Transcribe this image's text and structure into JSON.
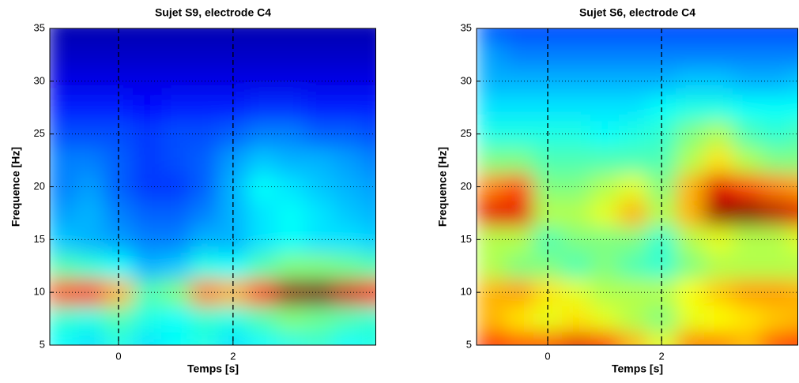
{
  "chart_data": [
    {
      "type": "heatmap",
      "title": "Sujet S9, electrode C4",
      "xlabel": "Temps [s]",
      "ylabel": "Frequence [Hz]",
      "xlim": [
        -1.2,
        4.5
      ],
      "ylim": [
        5,
        35
      ],
      "xticks": [
        0,
        2
      ],
      "yticks": [
        5,
        10,
        15,
        20,
        25,
        30,
        35
      ],
      "grid": true,
      "x_grid_style": "dashed",
      "y_grid_style": "dotted",
      "colormap": "jet",
      "x": [
        -1,
        -0.5,
        0,
        0.5,
        1,
        1.5,
        2,
        2.5,
        3,
        3.5,
        4,
        4.5
      ],
      "y": [
        5,
        7.5,
        10,
        12.5,
        15,
        17.5,
        20,
        22.5,
        25,
        27.5,
        30,
        32.5,
        35
      ],
      "z": [
        [
          0.38,
          0.35,
          0.4,
          0.35,
          0.38,
          0.4,
          0.35,
          0.38,
          0.4,
          0.42,
          0.38,
          0.4
        ],
        [
          0.42,
          0.4,
          0.45,
          0.4,
          0.38,
          0.42,
          0.4,
          0.45,
          0.5,
          0.48,
          0.45,
          0.42
        ],
        [
          0.8,
          0.82,
          0.7,
          0.45,
          0.5,
          0.75,
          0.7,
          0.82,
          0.98,
          1.0,
          0.92,
          0.85
        ],
        [
          0.45,
          0.42,
          0.38,
          0.3,
          0.32,
          0.4,
          0.38,
          0.45,
          0.5,
          0.5,
          0.48,
          0.45
        ],
        [
          0.32,
          0.3,
          0.28,
          0.25,
          0.25,
          0.3,
          0.3,
          0.35,
          0.38,
          0.35,
          0.35,
          0.33
        ],
        [
          0.28,
          0.3,
          0.25,
          0.22,
          0.22,
          0.25,
          0.3,
          0.35,
          0.38,
          0.35,
          0.32,
          0.3
        ],
        [
          0.25,
          0.28,
          0.22,
          0.18,
          0.18,
          0.22,
          0.3,
          0.38,
          0.35,
          0.32,
          0.3,
          0.28
        ],
        [
          0.25,
          0.25,
          0.22,
          0.18,
          0.2,
          0.22,
          0.28,
          0.32,
          0.3,
          0.3,
          0.28,
          0.25
        ],
        [
          0.2,
          0.2,
          0.2,
          0.18,
          0.2,
          0.2,
          0.22,
          0.25,
          0.25,
          0.22,
          0.22,
          0.2
        ],
        [
          0.15,
          0.15,
          0.15,
          0.13,
          0.15,
          0.15,
          0.15,
          0.17,
          0.17,
          0.15,
          0.15,
          0.15
        ],
        [
          0.1,
          0.1,
          0.1,
          0.1,
          0.1,
          0.1,
          0.1,
          0.1,
          0.1,
          0.1,
          0.1,
          0.1
        ],
        [
          0.07,
          0.07,
          0.07,
          0.07,
          0.07,
          0.07,
          0.07,
          0.07,
          0.07,
          0.07,
          0.07,
          0.07
        ],
        [
          0.05,
          0.05,
          0.05,
          0.05,
          0.05,
          0.05,
          0.05,
          0.05,
          0.05,
          0.05,
          0.05,
          0.05
        ]
      ]
    },
    {
      "type": "heatmap",
      "title": "Sujet S6, electrode C4",
      "xlabel": "Temps [s]",
      "ylabel": "Frequence [Hz]",
      "xlim": [
        -1.25,
        4.4
      ],
      "ylim": [
        5,
        35
      ],
      "xticks": [
        0,
        2
      ],
      "yticks": [
        5,
        10,
        15,
        20,
        25,
        30,
        35
      ],
      "grid": true,
      "x_grid_style": "dashed",
      "y_grid_style": "dotted",
      "colormap": "jet",
      "x": [
        -1,
        -0.5,
        0,
        0.5,
        1,
        1.5,
        2,
        2.5,
        3,
        3.5,
        4,
        4.5
      ],
      "y": [
        5,
        7.5,
        10,
        12.5,
        15,
        17.5,
        20,
        22.5,
        25,
        27.5,
        30,
        32.5,
        35
      ],
      "z": [
        [
          0.85,
          0.8,
          0.8,
          0.9,
          0.85,
          0.7,
          0.6,
          0.75,
          0.75,
          0.7,
          0.8,
          0.85
        ],
        [
          0.7,
          0.65,
          0.6,
          0.65,
          0.6,
          0.55,
          0.5,
          0.6,
          0.62,
          0.65,
          0.68,
          0.7
        ],
        [
          0.7,
          0.72,
          0.65,
          0.6,
          0.55,
          0.55,
          0.55,
          0.62,
          0.68,
          0.72,
          0.72,
          0.7
        ],
        [
          0.55,
          0.5,
          0.5,
          0.45,
          0.5,
          0.45,
          0.42,
          0.5,
          0.55,
          0.55,
          0.55,
          0.55
        ],
        [
          0.55,
          0.55,
          0.45,
          0.5,
          0.5,
          0.5,
          0.42,
          0.55,
          0.6,
          0.55,
          0.55,
          0.6
        ],
        [
          0.9,
          0.9,
          0.55,
          0.55,
          0.6,
          0.7,
          0.55,
          0.7,
          0.98,
          1.0,
          0.95,
          0.9
        ],
        [
          0.75,
          0.8,
          0.5,
          0.5,
          0.55,
          0.6,
          0.5,
          0.7,
          0.9,
          0.8,
          0.75,
          0.72
        ],
        [
          0.5,
          0.5,
          0.45,
          0.45,
          0.45,
          0.45,
          0.45,
          0.55,
          0.65,
          0.55,
          0.5,
          0.5
        ],
        [
          0.4,
          0.4,
          0.4,
          0.4,
          0.38,
          0.4,
          0.42,
          0.5,
          0.55,
          0.45,
          0.42,
          0.45
        ],
        [
          0.35,
          0.35,
          0.35,
          0.35,
          0.35,
          0.35,
          0.38,
          0.4,
          0.4,
          0.38,
          0.38,
          0.38
        ],
        [
          0.3,
          0.3,
          0.3,
          0.3,
          0.3,
          0.3,
          0.3,
          0.32,
          0.32,
          0.3,
          0.3,
          0.32
        ],
        [
          0.28,
          0.25,
          0.25,
          0.25,
          0.25,
          0.25,
          0.25,
          0.25,
          0.25,
          0.25,
          0.25,
          0.25
        ],
        [
          0.22,
          0.2,
          0.2,
          0.2,
          0.2,
          0.2,
          0.2,
          0.2,
          0.2,
          0.2,
          0.2,
          0.2
        ]
      ]
    }
  ]
}
